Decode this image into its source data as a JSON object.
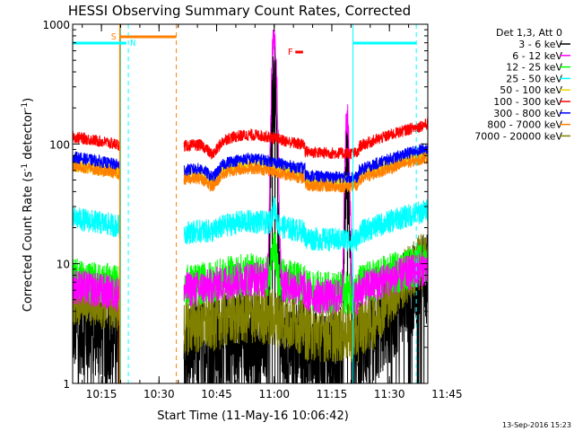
{
  "chart_data": {
    "type": "line",
    "title": "HESSI Observing Summary Count Rates, Corrected",
    "xlabel": "Start Time (11-May-16 10:06:42)",
    "ylabel": "Corrected Count Rate (s^-1 detector^-1)",
    "ylabel_main": "Corrected Count Rate (s",
    "ylabel_sup1": "-1",
    "ylabel_mid": " detector",
    "ylabel_sup2": "-1",
    "ylabel_end": ")",
    "y_scale": "log",
    "ylim": [
      1,
      1000
    ],
    "xlim_minutes": [
      7.5,
      100
    ],
    "x_tick_labels": [
      {
        "label": "10:15",
        "min": 15
      },
      {
        "label": "10:30",
        "min": 30
      },
      {
        "label": "10:45",
        "min": 45
      },
      {
        "label": "11:00",
        "min": 60
      },
      {
        "label": "11:15",
        "min": 75
      },
      {
        "label": "11:30",
        "min": 90
      },
      {
        "label": "11:45",
        "min": 105
      }
    ],
    "y_tick_labels": [
      {
        "label": "1",
        "value": 1
      },
      {
        "label": "10",
        "value": 10
      },
      {
        "label": "100",
        "value": 100
      },
      {
        "label": "1000",
        "value": 1000
      }
    ],
    "legend_title": "Det 1,3, Att 0",
    "legend_position": "right",
    "series": [
      {
        "name": "3 - 6 keV",
        "color": "#000000",
        "key": "s0"
      },
      {
        "name": "6 - 12 keV",
        "color": "#ff00ff",
        "key": "s1"
      },
      {
        "name": "12 - 25 keV",
        "color": "#00ff00",
        "key": "s2"
      },
      {
        "name": "25 - 50 keV",
        "color": "#00ffff",
        "key": "s3"
      },
      {
        "name": "50 - 100 keV",
        "color": "#e6d800",
        "key": "s4"
      },
      {
        "name": "100 - 300 keV",
        "color": "#ff0000",
        "key": "s5"
      },
      {
        "name": "300 - 800 keV",
        "color": "#0000ff",
        "key": "s6"
      },
      {
        "name": "800 - 7000 keV",
        "color": "#ff8000",
        "key": "s7"
      },
      {
        "name": "7000 - 20000 keV",
        "color": "#808000",
        "key": "s8"
      }
    ],
    "annotations": {
      "saa_label": "S",
      "night_label": "N",
      "flare_label": "F"
    },
    "timestamp": "13-Sep-2016 15:23"
  }
}
